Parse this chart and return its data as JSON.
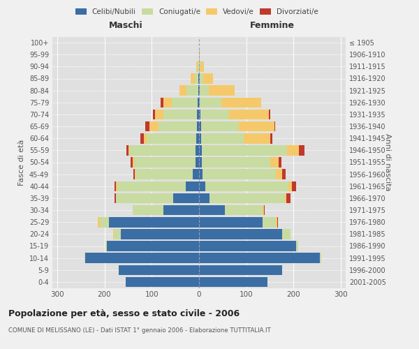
{
  "age_groups": [
    "0-4",
    "5-9",
    "10-14",
    "15-19",
    "20-24",
    "25-29",
    "30-34",
    "35-39",
    "40-44",
    "45-49",
    "50-54",
    "55-59",
    "60-64",
    "65-69",
    "70-74",
    "75-79",
    "80-84",
    "85-89",
    "90-94",
    "95-99",
    "100+"
  ],
  "birth_years": [
    "2001-2005",
    "1996-2000",
    "1991-1995",
    "1986-1990",
    "1981-1985",
    "1976-1980",
    "1971-1975",
    "1966-1970",
    "1961-1965",
    "1956-1960",
    "1951-1955",
    "1946-1950",
    "1941-1945",
    "1936-1940",
    "1931-1935",
    "1926-1930",
    "1921-1925",
    "1916-1920",
    "1911-1915",
    "1906-1910",
    "≤ 1905"
  ],
  "colors": {
    "celibe": "#3a6ea5",
    "coniugato": "#c8dba0",
    "vedovo": "#f5c96a",
    "divorziato": "#c0392b"
  },
  "male": {
    "celibe": [
      155,
      170,
      240,
      195,
      165,
      190,
      75,
      55,
      28,
      14,
      8,
      7,
      6,
      5,
      5,
      3,
      2,
      1,
      0,
      0,
      0
    ],
    "coniugato": [
      0,
      0,
      2,
      3,
      15,
      20,
      65,
      120,
      145,
      120,
      130,
      140,
      105,
      80,
      70,
      55,
      25,
      8,
      3,
      0,
      0
    ],
    "vedovo": [
      0,
      0,
      0,
      0,
      2,
      4,
      0,
      0,
      3,
      2,
      2,
      2,
      5,
      20,
      18,
      18,
      15,
      8,
      3,
      0,
      0
    ],
    "divorziato": [
      0,
      0,
      0,
      0,
      0,
      0,
      0,
      4,
      3,
      3,
      4,
      5,
      8,
      8,
      4,
      5,
      0,
      0,
      0,
      0,
      0
    ]
  },
  "female": {
    "nubile": [
      145,
      175,
      255,
      205,
      175,
      135,
      55,
      22,
      14,
      8,
      6,
      6,
      5,
      4,
      3,
      2,
      1,
      1,
      0,
      0,
      0
    ],
    "coniugata": [
      0,
      0,
      3,
      4,
      18,
      28,
      80,
      160,
      175,
      155,
      145,
      180,
      90,
      80,
      60,
      45,
      20,
      8,
      3,
      0,
      0
    ],
    "vedova": [
      0,
      0,
      0,
      0,
      0,
      2,
      2,
      3,
      8,
      12,
      18,
      25,
      55,
      75,
      85,
      85,
      55,
      20,
      8,
      1,
      0
    ],
    "divorziata": [
      0,
      0,
      0,
      0,
      0,
      2,
      2,
      8,
      8,
      8,
      5,
      12,
      5,
      2,
      2,
      0,
      0,
      0,
      0,
      0,
      0
    ]
  },
  "xlim": 310,
  "title": "Popolazione per età, sesso e stato civile - 2006",
  "subtitle": "COMUNE DI MELISSANO (LE) - Dati ISTAT 1° gennaio 2006 - Elaborazione TUTTITALIA.IT",
  "ylabel_left": "Fasce di età",
  "ylabel_right": "Anni di nascita",
  "xlabel_left": "Maschi",
  "xlabel_right": "Femmine",
  "fig_bg": "#f0f0f0",
  "plot_bg": "#e0e0e0"
}
